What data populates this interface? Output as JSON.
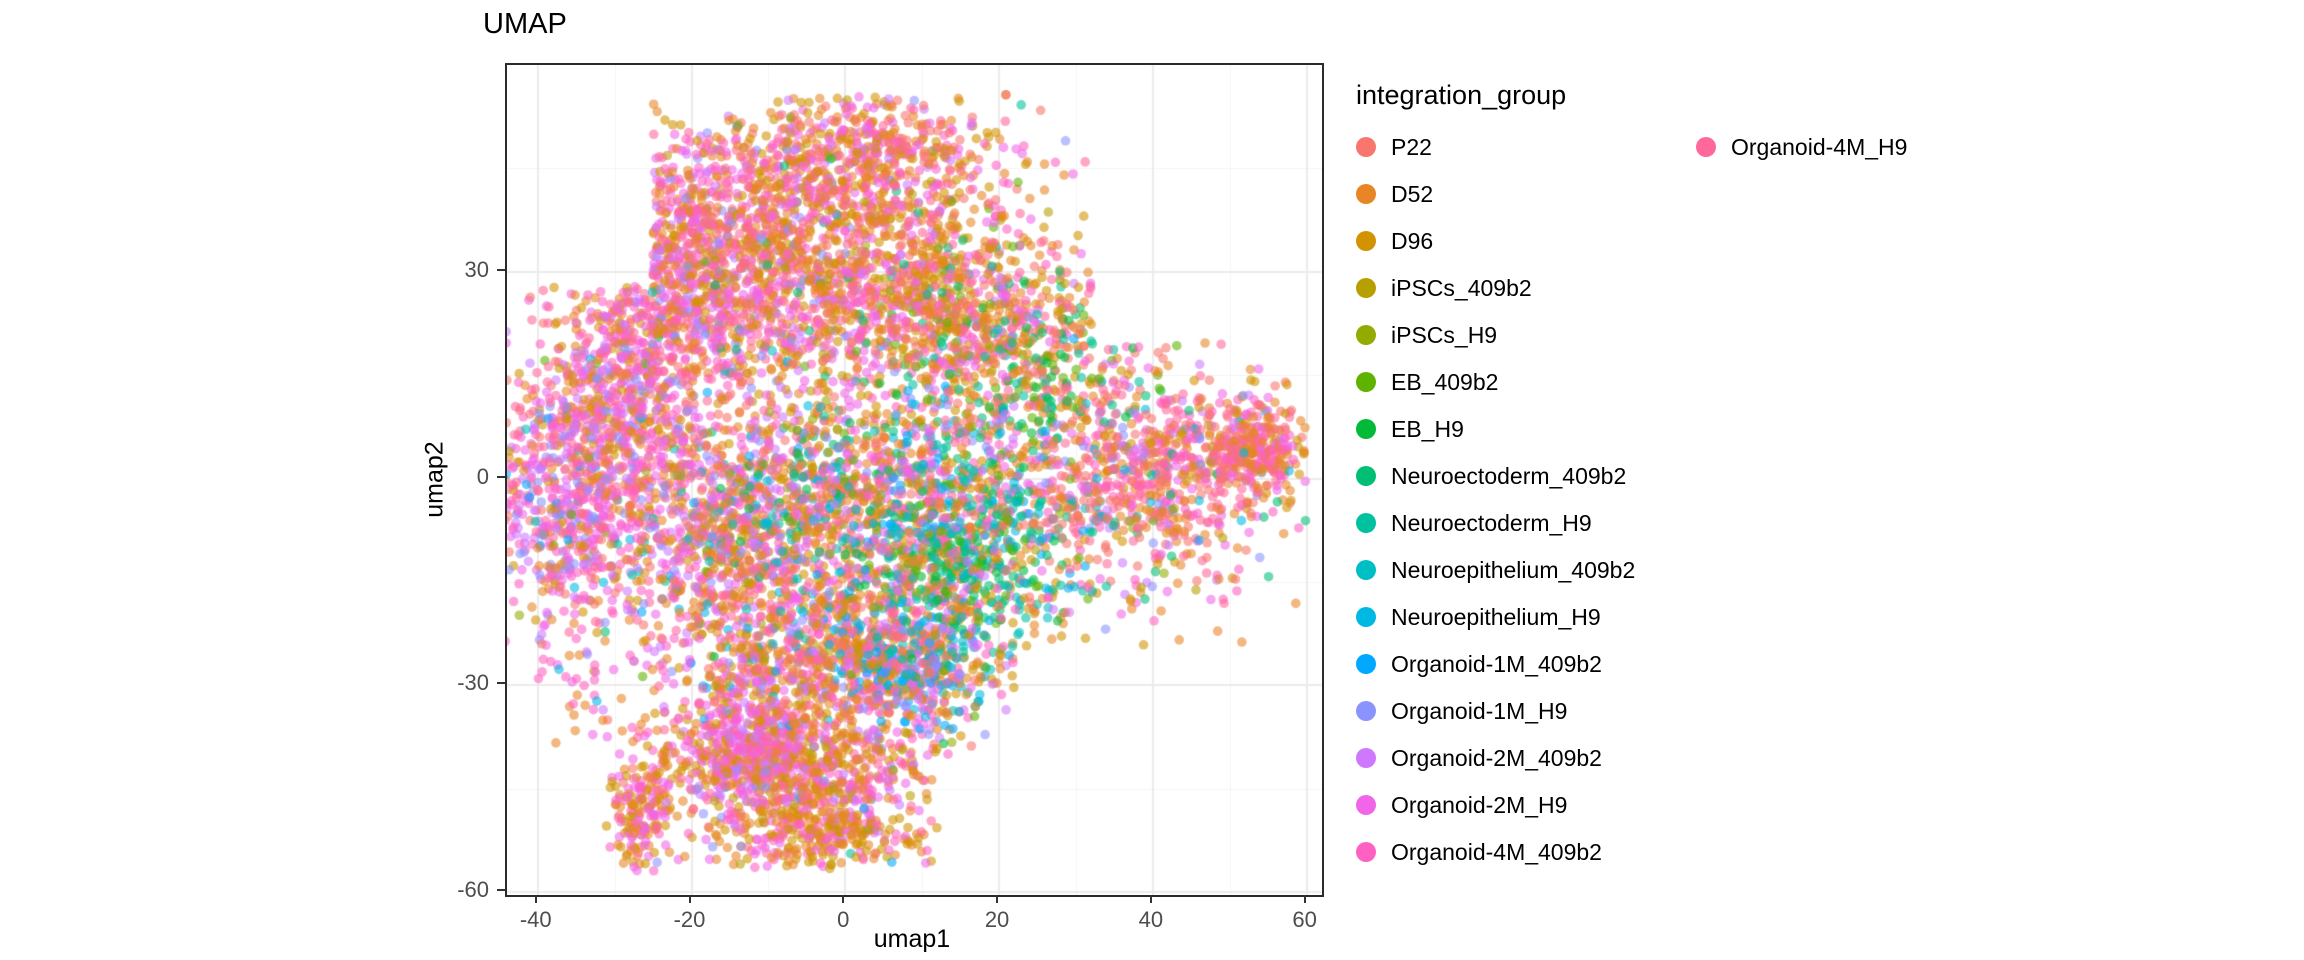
{
  "chart_data": {
    "type": "scatter",
    "title": "UMAP",
    "xlabel": "umap1",
    "ylabel": "umap2",
    "xlim": [
      -44,
      62
    ],
    "ylim": [
      -60.4,
      60
    ],
    "x_ticks": [
      -40,
      -20,
      0,
      20,
      40,
      60
    ],
    "y_ticks": [
      -60,
      -30,
      0,
      30
    ],
    "x_minor": [
      -30,
      -10,
      10,
      30,
      50
    ],
    "y_minor": [
      -45,
      -15,
      15,
      45
    ],
    "grid": true,
    "legend_position": "right",
    "legend_title": "integration_group",
    "point_radius": 4.8,
    "point_alpha": 0.58,
    "seed": 42,
    "groups": [
      {
        "name": "P22",
        "color": "#F8766D"
      },
      {
        "name": "D52",
        "color": "#E88526"
      },
      {
        "name": "D96",
        "color": "#D39200"
      },
      {
        "name": "iPSCs_409b2",
        "color": "#B79F00"
      },
      {
        "name": "iPSCs_H9",
        "color": "#93AA00"
      },
      {
        "name": "EB_409b2",
        "color": "#5EB300"
      },
      {
        "name": "EB_H9",
        "color": "#00BA38"
      },
      {
        "name": "Neuroectoderm_409b2",
        "color": "#00BF74"
      },
      {
        "name": "Neuroectoderm_H9",
        "color": "#00C19F"
      },
      {
        "name": "Neuroepithelium_409b2",
        "color": "#00BFC4"
      },
      {
        "name": "Neuroepithelium_H9",
        "color": "#00B9E3"
      },
      {
        "name": "Organoid-1M_409b2",
        "color": "#00A9FF"
      },
      {
        "name": "Organoid-1M_H9",
        "color": "#8B93FF"
      },
      {
        "name": "Organoid-2M_409b2",
        "color": "#CF78FF"
      },
      {
        "name": "Organoid-2M_H9",
        "color": "#F166E8"
      },
      {
        "name": "Organoid-4M_409b2",
        "color": "#FF61C3"
      },
      {
        "name": "Organoid-4M_H9",
        "color": "#FF689B"
      }
    ],
    "clusters": [
      {
        "cx": -22,
        "cy": 28,
        "sx": 8,
        "sy": 10,
        "n": 700,
        "w": [
          [
            14,
            3
          ],
          [
            15,
            3
          ],
          [
            16,
            2
          ],
          [
            13,
            1.5
          ],
          [
            12,
            1
          ],
          [
            1,
            1.5
          ],
          [
            2,
            1
          ],
          [
            0,
            0.8
          ]
        ]
      },
      {
        "cx": -5,
        "cy": 33,
        "sx": 13,
        "sy": 10,
        "n": 1400,
        "w": [
          [
            1,
            3
          ],
          [
            2,
            2.5
          ],
          [
            0,
            1
          ],
          [
            14,
            1.5
          ],
          [
            15,
            1.5
          ],
          [
            16,
            1
          ],
          [
            13,
            0.8
          ],
          [
            3,
            0.4
          ],
          [
            12,
            0.4
          ],
          [
            5,
            0.1
          ],
          [
            7,
            0.1
          ]
        ]
      },
      {
        "cx": 2,
        "cy": 47,
        "sx": 8,
        "sy": 4,
        "n": 350,
        "w": [
          [
            1,
            2.5
          ],
          [
            2,
            2
          ],
          [
            14,
            1.5
          ],
          [
            15,
            1.5
          ],
          [
            0,
            1
          ],
          [
            16,
            1
          ],
          [
            13,
            0.6
          ]
        ]
      },
      {
        "cx": 13,
        "cy": 25,
        "sx": 8,
        "sy": 7,
        "n": 550,
        "w": [
          [
            1,
            2.5
          ],
          [
            2,
            2
          ],
          [
            0,
            1.2
          ],
          [
            14,
            1.2
          ],
          [
            15,
            1
          ],
          [
            5,
            0.4
          ],
          [
            7,
            0.4
          ],
          [
            3,
            0.3
          ],
          [
            16,
            0.8
          ]
        ]
      },
      {
        "cx": 26,
        "cy": 16,
        "sx": 6,
        "sy": 7,
        "n": 280,
        "w": [
          [
            0,
            1.5
          ],
          [
            1,
            1.5
          ],
          [
            5,
            1
          ],
          [
            7,
            1
          ],
          [
            8,
            0.8
          ],
          [
            2,
            0.8
          ],
          [
            14,
            0.8
          ],
          [
            16,
            0.6
          ],
          [
            6,
            0.6
          ]
        ]
      },
      {
        "cx": 40,
        "cy": 1,
        "sx": 8,
        "sy": 8,
        "n": 700,
        "w": [
          [
            0,
            2
          ],
          [
            1,
            2
          ],
          [
            16,
            1.5
          ],
          [
            15,
            1.5
          ],
          [
            14,
            1
          ],
          [
            2,
            0.8
          ],
          [
            12,
            0.5
          ],
          [
            13,
            0.5
          ],
          [
            7,
            0.3
          ],
          [
            10,
            0.3
          ]
        ]
      },
      {
        "cx": 53,
        "cy": 4,
        "sx": 3.5,
        "sy": 3.5,
        "n": 300,
        "w": [
          [
            0,
            2
          ],
          [
            1,
            2
          ],
          [
            15,
            1.5
          ],
          [
            16,
            1.5
          ],
          [
            2,
            1
          ],
          [
            14,
            0.8
          ]
        ]
      },
      {
        "cx": 5,
        "cy": -3,
        "sx": 11,
        "sy": 8,
        "n": 1000,
        "w": [
          [
            1,
            2
          ],
          [
            2,
            1.8
          ],
          [
            0,
            1
          ],
          [
            14,
            1.5
          ],
          [
            15,
            1.2
          ],
          [
            7,
            0.8
          ],
          [
            8,
            0.8
          ],
          [
            9,
            0.6
          ],
          [
            10,
            0.6
          ],
          [
            5,
            0.6
          ],
          [
            6,
            0.5
          ],
          [
            11,
            0.5
          ],
          [
            12,
            0.5
          ],
          [
            13,
            0.8
          ],
          [
            16,
            0.8
          ],
          [
            4,
            0.3
          ]
        ]
      },
      {
        "cx": 16,
        "cy": -12,
        "sx": 7,
        "sy": 7,
        "n": 450,
        "w": [
          [
            7,
            1.5
          ],
          [
            8,
            1.5
          ],
          [
            9,
            1.2
          ],
          [
            10,
            1
          ],
          [
            5,
            1
          ],
          [
            6,
            1
          ],
          [
            11,
            0.8
          ],
          [
            1,
            0.8
          ],
          [
            2,
            0.6
          ],
          [
            14,
            0.6
          ],
          [
            0,
            0.5
          ]
        ]
      },
      {
        "cx": -36,
        "cy": -4,
        "sx": 5.5,
        "sy": 9,
        "n": 550,
        "w": [
          [
            14,
            2
          ],
          [
            15,
            2
          ],
          [
            16,
            1.5
          ],
          [
            13,
            1.5
          ],
          [
            12,
            1
          ],
          [
            1,
            1
          ],
          [
            0,
            0.8
          ],
          [
            2,
            0.6
          ],
          [
            11,
            0.3
          ]
        ]
      },
      {
        "cx": -29,
        "cy": 10,
        "sx": 6,
        "sy": 7,
        "n": 400,
        "w": [
          [
            14,
            2
          ],
          [
            15,
            1.5
          ],
          [
            1,
            1.5
          ],
          [
            2,
            1
          ],
          [
            13,
            1
          ],
          [
            16,
            1
          ],
          [
            0,
            0.8
          ],
          [
            12,
            0.6
          ]
        ]
      },
      {
        "cx": -16,
        "cy": -8,
        "sx": 8,
        "sy": 8,
        "n": 700,
        "w": [
          [
            1,
            2
          ],
          [
            2,
            1.5
          ],
          [
            14,
            1.8
          ],
          [
            15,
            1.5
          ],
          [
            0,
            1
          ],
          [
            13,
            1
          ],
          [
            16,
            1
          ],
          [
            12,
            0.6
          ],
          [
            11,
            0.3
          ],
          [
            8,
            0.3
          ],
          [
            10,
            0.3
          ]
        ]
      },
      {
        "cx": -1,
        "cy": -26,
        "sx": 11,
        "sy": 6,
        "n": 900,
        "w": [
          [
            1,
            2.5
          ],
          [
            2,
            2.2
          ],
          [
            14,
            1.5
          ],
          [
            15,
            1.2
          ],
          [
            0,
            0.8
          ],
          [
            13,
            0.8
          ],
          [
            16,
            0.8
          ],
          [
            11,
            0.4
          ],
          [
            10,
            0.4
          ],
          [
            12,
            0.4
          ],
          [
            3,
            0.3
          ]
        ]
      },
      {
        "cx": 9,
        "cy": -27,
        "sx": 4,
        "sy": 4,
        "n": 200,
        "w": [
          [
            11,
            1.5
          ],
          [
            10,
            1.2
          ],
          [
            9,
            1
          ],
          [
            12,
            0.8
          ],
          [
            8,
            0.8
          ],
          [
            14,
            0.8
          ],
          [
            1,
            0.6
          ],
          [
            13,
            0.5
          ]
        ]
      },
      {
        "cx": -6,
        "cy": -43,
        "sx": 9,
        "sy": 6,
        "n": 800,
        "w": [
          [
            1,
            2.5
          ],
          [
            2,
            2.2
          ],
          [
            14,
            1.5
          ],
          [
            15,
            1.2
          ],
          [
            16,
            0.8
          ],
          [
            0,
            0.6
          ],
          [
            13,
            0.6
          ],
          [
            12,
            0.3
          ],
          [
            3,
            0.3
          ]
        ]
      },
      {
        "cx": -13,
        "cy": -39,
        "sx": 4,
        "sy": 4,
        "n": 250,
        "w": [
          [
            14,
            2.5
          ],
          [
            13,
            1.5
          ],
          [
            15,
            1.5
          ],
          [
            1,
            1
          ],
          [
            2,
            0.8
          ]
        ]
      },
      {
        "cx": -26.5,
        "cy": -48,
        "sx": 2,
        "sy": 5,
        "n": 160,
        "w": [
          [
            1,
            2
          ],
          [
            2,
            1.5
          ],
          [
            14,
            1.5
          ],
          [
            15,
            1
          ],
          [
            0,
            0.5
          ]
        ]
      },
      {
        "cx": -2,
        "cy": -52,
        "sx": 7,
        "sy": 2,
        "n": 180,
        "w": [
          [
            1,
            2.5
          ],
          [
            2,
            2
          ],
          [
            14,
            1
          ],
          [
            15,
            0.8
          ]
        ]
      },
      {
        "cx": 0,
        "cy": -2,
        "sx": 24,
        "sy": 22,
        "n": 700,
        "w": [
          [
            0,
            1
          ],
          [
            1,
            1.5
          ],
          [
            2,
            1.2
          ],
          [
            3,
            0.5
          ],
          [
            4,
            0.4
          ],
          [
            5,
            0.5
          ],
          [
            6,
            0.5
          ],
          [
            7,
            0.5
          ],
          [
            8,
            0.5
          ],
          [
            9,
            0.5
          ],
          [
            10,
            0.5
          ],
          [
            11,
            0.5
          ],
          [
            12,
            0.6
          ],
          [
            13,
            0.8
          ],
          [
            14,
            1
          ],
          [
            15,
            1
          ],
          [
            16,
            0.8
          ]
        ]
      },
      {
        "cx": -36,
        "cy": -30,
        "sx": 3,
        "sy": 4,
        "n": 25,
        "free": 1,
        "w": [
          [
            14,
            1
          ],
          [
            1,
            1
          ],
          [
            10,
            0.5
          ],
          [
            15,
            1
          ]
        ]
      }
    ]
  }
}
